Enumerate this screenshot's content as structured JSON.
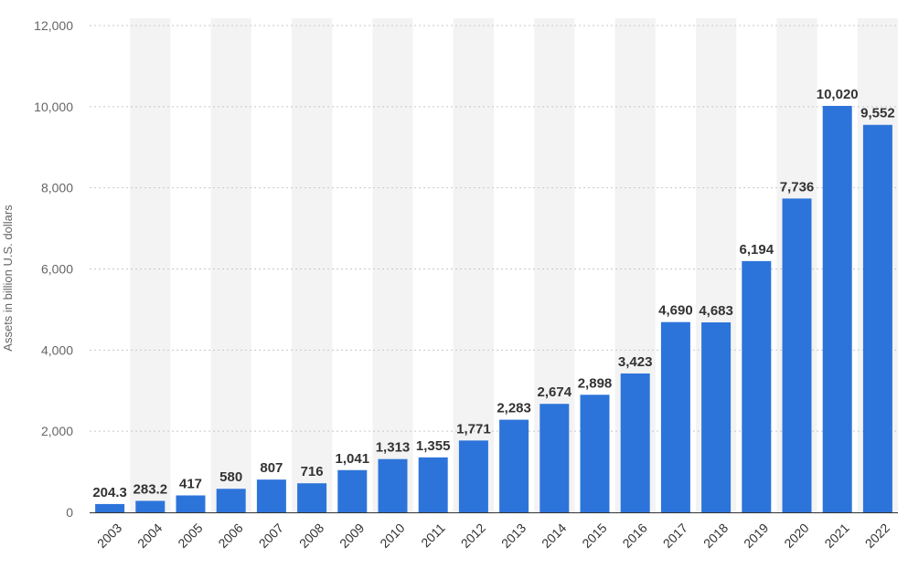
{
  "chart_data": {
    "type": "bar",
    "title": "",
    "xlabel": "",
    "ylabel": "Assets in billion U.S. dollars",
    "ylim": [
      0,
      12000
    ],
    "yticks": [
      0,
      2000,
      4000,
      6000,
      8000,
      10000,
      12000
    ],
    "ytick_labels": [
      "0",
      "2,000",
      "4,000",
      "6,000",
      "8,000",
      "10,000",
      "12,000"
    ],
    "grid": true,
    "categories": [
      "2003",
      "2004",
      "2005",
      "2006",
      "2007",
      "2008",
      "2009",
      "2010",
      "2011",
      "2012",
      "2013",
      "2014",
      "2015",
      "2016",
      "2017",
      "2018",
      "2019",
      "2020",
      "2021",
      "2022"
    ],
    "values": [
      204.3,
      283.2,
      417,
      580,
      807,
      716,
      1041,
      1313,
      1355,
      1771,
      2283,
      2674,
      2898,
      3423,
      4690,
      4683,
      6194,
      7736,
      10020,
      9552
    ],
    "value_labels": [
      "204.3",
      "283.2",
      "417",
      "580",
      "807",
      "716",
      "1,041",
      "1,313",
      "1,355",
      "1,771",
      "2,283",
      "2,674",
      "2,898",
      "3,423",
      "4,690",
      "4,683",
      "6,194",
      "7,736",
      "10,020",
      "9,552"
    ],
    "colors": {
      "bar": "#2d74da",
      "grid": "#c8c8c8",
      "band": "#f3f3f3",
      "axis": "#333333"
    }
  }
}
